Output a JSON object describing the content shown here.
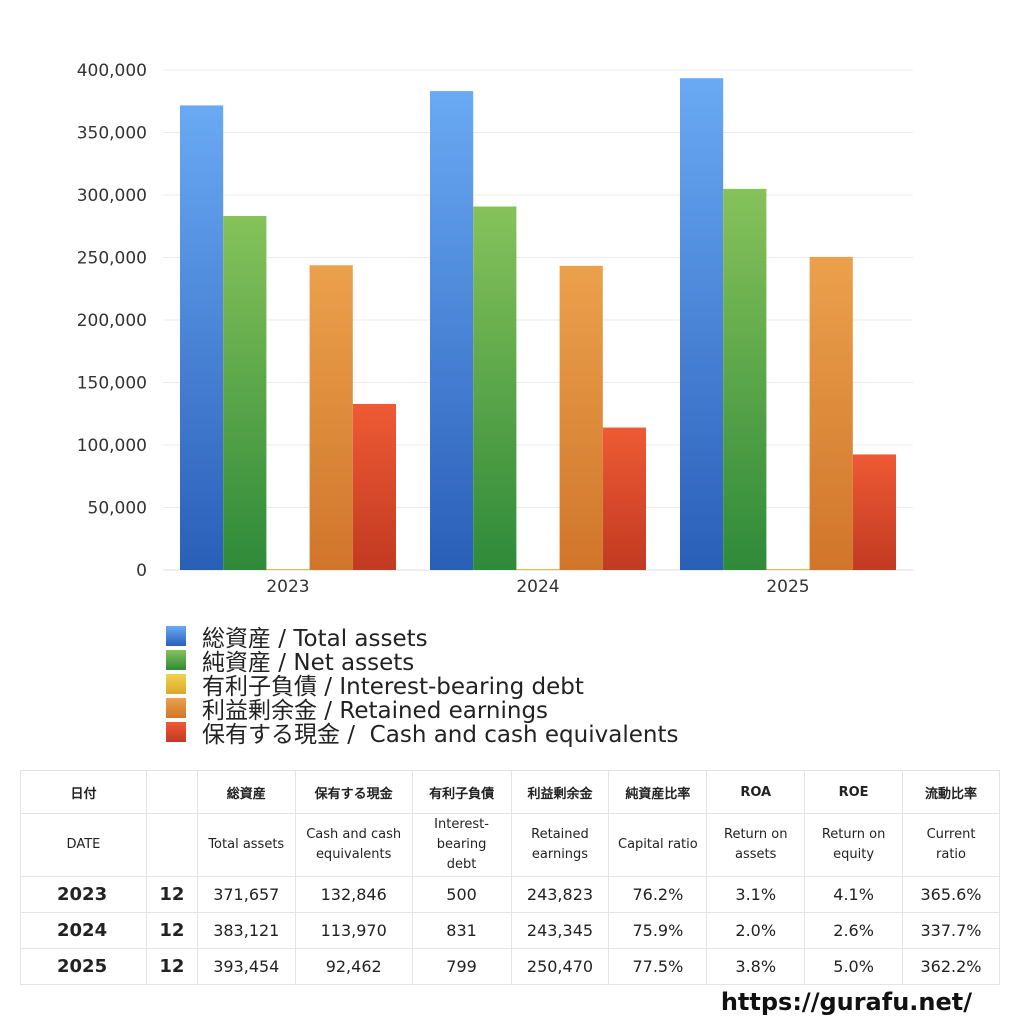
{
  "chart_data": {
    "type": "bar",
    "categories": [
      "2023",
      "2024",
      "2025"
    ],
    "series": [
      {
        "name": "総資産 / Total assets",
        "values": [
          371657,
          383121,
          393454
        ],
        "color_top": "#6aa9f4",
        "color_bottom": "#2a5fb8"
      },
      {
        "name": "純資産 / Net assets",
        "values": [
          283200,
          290800,
          304900
        ],
        "color_top": "#86c25a",
        "color_bottom": "#2f8a39"
      },
      {
        "name": "有利子負債 / Interest-bearing debt",
        "values": [
          500,
          831,
          799
        ],
        "color_top": "#f2d24e",
        "color_bottom": "#d9a82a"
      },
      {
        "name": "利益剰余金 / Retained earnings",
        "values": [
          243823,
          243345,
          250470
        ],
        "color_top": "#eba14c",
        "color_bottom": "#d0752a"
      },
      {
        "name": "保有する現金 /  Cash and cash equivalents",
        "values": [
          132846,
          113970,
          92462
        ],
        "color_top": "#ee5a34",
        "color_bottom": "#c23a22"
      }
    ],
    "yticks": [
      "0",
      "50,000",
      "100,000",
      "150,000",
      "200,000",
      "250,000",
      "300,000",
      "350,000",
      "400,000"
    ],
    "ylim": [
      0,
      400000
    ],
    "grid": true,
    "legend": "bottom"
  },
  "table": {
    "headers_ja": [
      "日付",
      "",
      "総資産",
      "保有する現金",
      "有利子負債",
      "利益剰余金",
      "純資産比率",
      "ROA",
      "ROE",
      "流動比率"
    ],
    "headers_en": [
      "DATE",
      "",
      "Total assets",
      "Cash and cash\nequivalents",
      "Interest-\nbearing\ndebt",
      "Retained\nearnings",
      "Capital ratio",
      "Return on\nassets",
      "Return on\nequity",
      "Current\nratio"
    ],
    "rows": [
      [
        "2023",
        "12",
        "371,657",
        "132,846",
        "500",
        "243,823",
        "76.2%",
        "3.1%",
        "4.1%",
        "365.6%"
      ],
      [
        "2024",
        "12",
        "383,121",
        "113,970",
        "831",
        "243,345",
        "75.9%",
        "2.0%",
        "2.6%",
        "337.7%"
      ],
      [
        "2025",
        "12",
        "393,454",
        "92,462",
        "799",
        "250,470",
        "77.5%",
        "3.8%",
        "5.0%",
        "362.2%"
      ]
    ]
  },
  "footer": {
    "url": "https://gurafu.net/"
  }
}
